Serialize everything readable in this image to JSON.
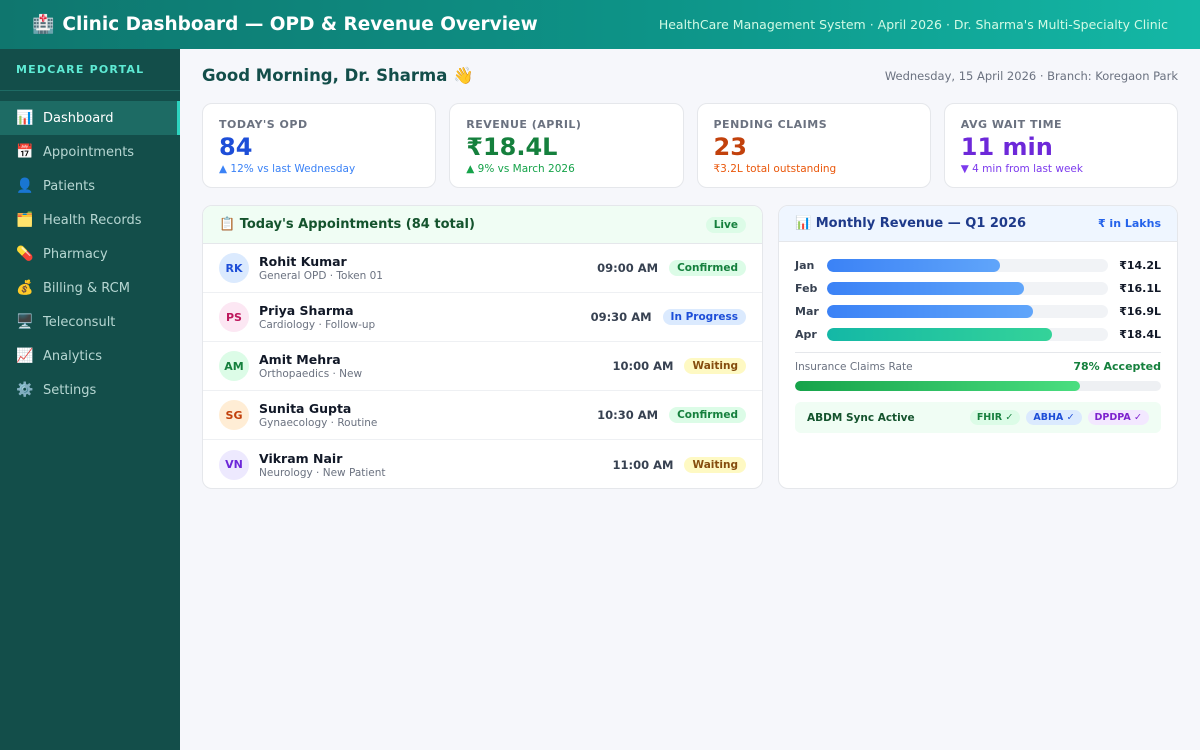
{
  "header": {
    "icon": "hospital-icon",
    "title": "Clinic Dashboard — OPD & Revenue Overview",
    "subtitle": "HealthCare Management System · April 2026 · Dr. Sharma's Multi-Specialty Clinic"
  },
  "sidebar": {
    "brand": "MEDCARE PORTAL",
    "items": [
      {
        "label": "Dashboard",
        "icon": "chart-icon",
        "active": true
      },
      {
        "label": "Appointments",
        "icon": "calendar-icon",
        "active": false
      },
      {
        "label": "Patients",
        "icon": "user-icon",
        "active": false
      },
      {
        "label": "Health Records",
        "icon": "folder-icon",
        "active": false
      },
      {
        "label": "Pharmacy",
        "icon": "pill-icon",
        "active": false
      },
      {
        "label": "Billing & RCM",
        "icon": "money-bag-icon",
        "active": false
      },
      {
        "label": "Teleconsult",
        "icon": "monitor-icon",
        "active": false
      },
      {
        "label": "Analytics",
        "icon": "trend-icon",
        "active": false
      },
      {
        "label": "Settings",
        "icon": "gear-icon",
        "active": false
      }
    ]
  },
  "greeting": {
    "text": "Good Morning, Dr. Sharma 👋",
    "date": "Wednesday, 15 April 2026 · Branch: Koregaon Park"
  },
  "kpis": [
    {
      "label": "TODAY'S OPD",
      "value": "84",
      "sub": "▲ 12% vs last Wednesday",
      "color": "#1d4ed8",
      "sub_color": "#3b82f6"
    },
    {
      "label": "REVENUE (APRIL)",
      "value": "₹18.4L",
      "sub": "▲ 9% vs March 2026",
      "color": "#15803d",
      "sub_color": "#16a34a"
    },
    {
      "label": "PENDING CLAIMS",
      "value": "23",
      "sub": "₹3.2L total outstanding",
      "color": "#c2410c",
      "sub_color": "#ea580c"
    },
    {
      "label": "AVG WAIT TIME",
      "value": "11 min",
      "sub": "▼ 4 min from last week",
      "color": "#6d28d9",
      "sub_color": "#7c3aed"
    }
  ],
  "appointments": {
    "icon": "clipboard-icon",
    "title": "Today's Appointments (84 total)",
    "live_label": "Live",
    "rows": [
      {
        "initials": "RK",
        "name": "Rohit Kumar",
        "desc": "General OPD · Token 01",
        "time": "09:00 AM",
        "status": "Confirmed",
        "avatar_bg": "#dbeafe",
        "avatar_fg": "#1d4ed8",
        "badge_bg": "#dcfce7",
        "badge_fg": "#15803d"
      },
      {
        "initials": "PS",
        "name": "Priya Sharma",
        "desc": "Cardiology · Follow-up",
        "time": "09:30 AM",
        "status": "In Progress",
        "avatar_bg": "#fce7f3",
        "avatar_fg": "#be185d",
        "badge_bg": "#dbeafe",
        "badge_fg": "#1d4ed8"
      },
      {
        "initials": "AM",
        "name": "Amit Mehra",
        "desc": "Orthopaedics · New",
        "time": "10:00 AM",
        "status": "Waiting",
        "avatar_bg": "#dcfce7",
        "avatar_fg": "#15803d",
        "badge_bg": "#fef9c3",
        "badge_fg": "#854d0e"
      },
      {
        "initials": "SG",
        "name": "Sunita Gupta",
        "desc": "Gynaecology · Routine",
        "time": "10:30 AM",
        "status": "Confirmed",
        "avatar_bg": "#ffedd5",
        "avatar_fg": "#c2410c",
        "badge_bg": "#dcfce7",
        "badge_fg": "#15803d"
      },
      {
        "initials": "VN",
        "name": "Vikram Nair",
        "desc": "Neurology · New Patient",
        "time": "11:00 AM",
        "status": "Waiting",
        "avatar_bg": "#ede9fe",
        "avatar_fg": "#6d28d9",
        "badge_bg": "#fef9c3",
        "badge_fg": "#854d0e"
      }
    ]
  },
  "revenue": {
    "icon": "chart-icon",
    "title": "Monthly Revenue — Q1 2026",
    "unit_label": "₹ in Lakhs",
    "bar_scale_max": 23,
    "bars": [
      {
        "month": "Jan",
        "value": 14.2,
        "label": "₹14.2L",
        "color": "#3b82f6",
        "color2": "#60a5fa"
      },
      {
        "month": "Feb",
        "value": 16.1,
        "label": "₹16.1L",
        "color": "#3b82f6",
        "color2": "#60a5fa"
      },
      {
        "month": "Mar",
        "value": 16.9,
        "label": "₹16.9L",
        "color": "#3b82f6",
        "color2": "#60a5fa"
      },
      {
        "month": "Apr",
        "value": 18.4,
        "label": "₹18.4L",
        "color": "#14b8a6",
        "color2": "#34d399"
      }
    ],
    "claims_label": "Insurance Claims Rate",
    "claims_value": "78% Accepted",
    "claims_fraction": 0.78,
    "abdm_label": "ABDM Sync Active",
    "chips": [
      {
        "label": "FHIR ✓",
        "bg": "#dcfce7",
        "fg": "#15803d"
      },
      {
        "label": "ABHA ✓",
        "bg": "#dbeafe",
        "fg": "#1d4ed8"
      },
      {
        "label": "DPDPA ✓",
        "bg": "#f3e8ff",
        "fg": "#7e22ce"
      }
    ]
  }
}
